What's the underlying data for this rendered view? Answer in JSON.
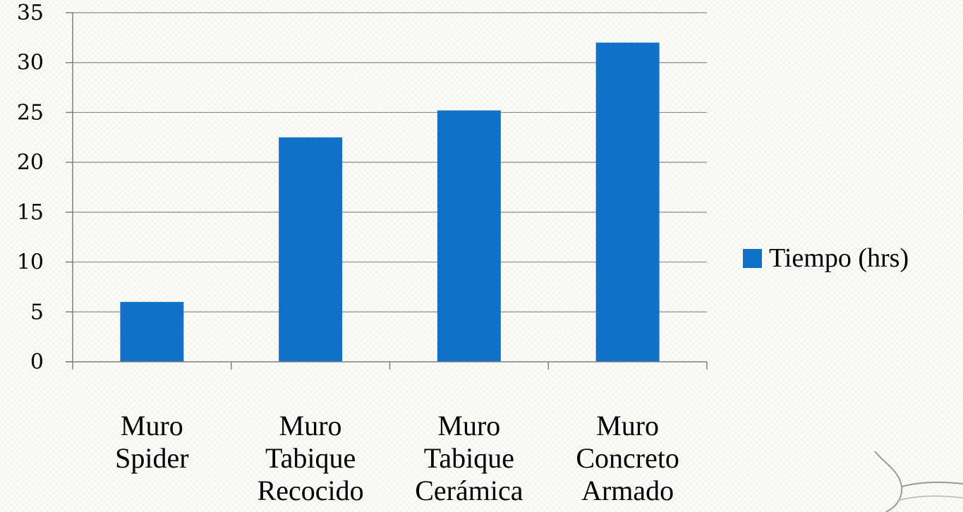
{
  "colors": {
    "bar": "#1170c8",
    "grid": "#8a8a8a",
    "axis": "#7f7f7f"
  },
  "chart_data": {
    "type": "bar",
    "categories": [
      [
        "Muro",
        "Spider"
      ],
      [
        "Muro",
        "Tabique",
        "Recocido"
      ],
      [
        "Muro",
        "Tabique",
        "Cerámica"
      ],
      [
        "Muro",
        "Concreto",
        "Armado"
      ]
    ],
    "series": [
      {
        "name": "Tiempo (hrs)",
        "values": [
          6,
          22.5,
          25.2,
          32
        ]
      }
    ],
    "yticks": [
      "0",
      "5",
      "10",
      "15",
      "20",
      "25",
      "30",
      "35"
    ],
    "ylim": [
      0,
      35
    ],
    "grid": true,
    "legend_position": "right"
  },
  "icons": {
    "corner_logo": "swirl-logo-icon"
  }
}
